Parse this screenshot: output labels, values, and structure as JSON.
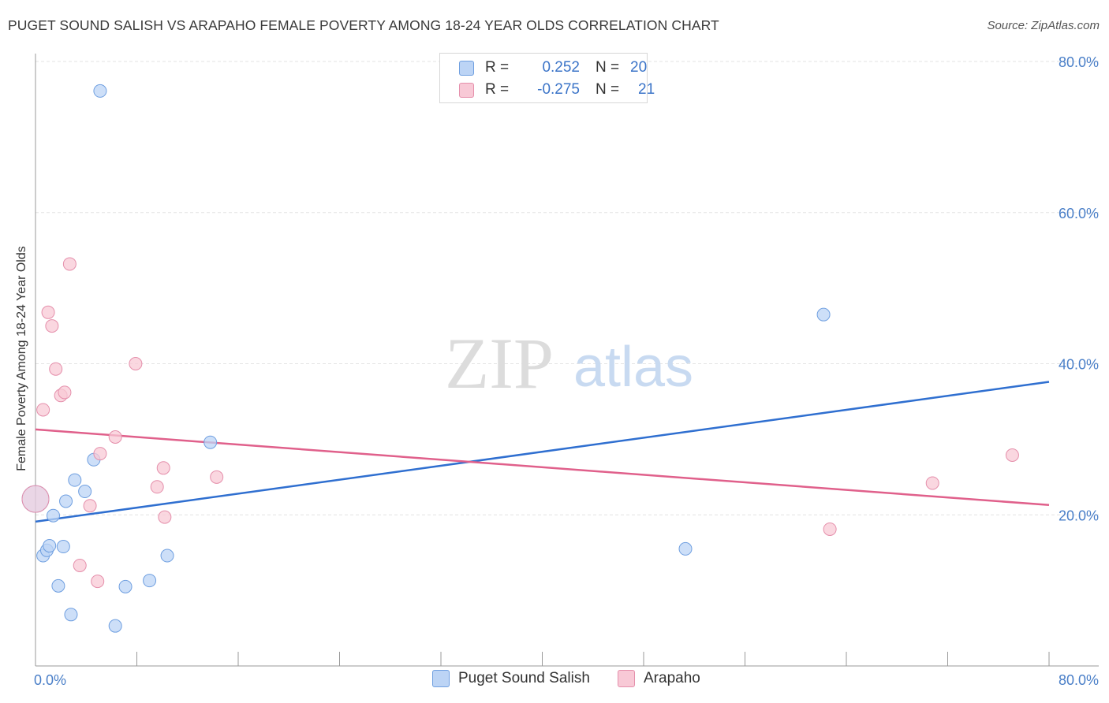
{
  "title": "PUGET SOUND SALISH VS ARAPAHO FEMALE POVERTY AMONG 18-24 YEAR OLDS CORRELATION CHART",
  "source": "Source: ZipAtlas.com",
  "watermark": {
    "zip": "ZIP",
    "atlas": "atlas"
  },
  "colors": {
    "blue_fill": "#bcd4f5",
    "blue_stroke": "#6f9fe0",
    "blue_line": "#2f6fd0",
    "pink_fill": "#f8c9d6",
    "pink_stroke": "#e58fab",
    "pink_line": "#e0608b",
    "tick_text": "#4a7fc8",
    "grid": "#e3e3e3"
  },
  "legend": {
    "rows": [
      {
        "r_label": "R =",
        "r_value": "0.252",
        "n_label": "N =",
        "n_value": "20",
        "series": "blue"
      },
      {
        "r_label": "R =",
        "r_value": "-0.275",
        "n_label": "N =",
        "n_value": "21",
        "series": "pink"
      }
    ]
  },
  "chart_data": {
    "type": "scatter",
    "title": "PUGET SOUND SALISH VS ARAPAHO FEMALE POVERTY AMONG 18-24 YEAR OLDS CORRELATION CHART",
    "xlabel": "",
    "ylabel": "Female Poverty Among 18-24 Year Olds",
    "xlim": [
      0,
      80
    ],
    "ylim": [
      0,
      80
    ],
    "x_tick_labels": [
      "0.0%",
      "80.0%"
    ],
    "y_ticks": [
      20,
      40,
      60,
      80
    ],
    "y_tick_labels": [
      "20.0%",
      "40.0%",
      "60.0%",
      "80.0%"
    ],
    "grid": true,
    "legend_position": "top-center",
    "series": [
      {
        "name": "Puget Sound Salish",
        "color": "blue",
        "r": 0.252,
        "n": 20,
        "points": [
          {
            "x": 5.1,
            "y": 76.1
          },
          {
            "x": 0.0,
            "y": 22.1,
            "large": true
          },
          {
            "x": 0.6,
            "y": 14.6
          },
          {
            "x": 0.9,
            "y": 15.3
          },
          {
            "x": 1.1,
            "y": 15.9
          },
          {
            "x": 1.4,
            "y": 19.9
          },
          {
            "x": 1.8,
            "y": 10.6
          },
          {
            "x": 2.2,
            "y": 15.8
          },
          {
            "x": 2.4,
            "y": 21.8
          },
          {
            "x": 2.8,
            "y": 6.8
          },
          {
            "x": 3.1,
            "y": 24.6
          },
          {
            "x": 3.9,
            "y": 23.1
          },
          {
            "x": 4.6,
            "y": 27.3
          },
          {
            "x": 6.3,
            "y": 5.3
          },
          {
            "x": 7.1,
            "y": 10.5
          },
          {
            "x": 9.0,
            "y": 11.3
          },
          {
            "x": 10.4,
            "y": 14.6
          },
          {
            "x": 13.8,
            "y": 29.6
          },
          {
            "x": 51.3,
            "y": 15.5
          },
          {
            "x": 62.2,
            "y": 46.5
          }
        ],
        "trend": {
          "x": [
            0,
            80
          ],
          "y": [
            19.1,
            37.6
          ]
        }
      },
      {
        "name": "Arapaho",
        "color": "pink",
        "r": -0.275,
        "n": 21,
        "points": [
          {
            "x": 0.0,
            "y": 22.1,
            "large": true
          },
          {
            "x": 0.6,
            "y": 33.9
          },
          {
            "x": 1.0,
            "y": 46.8
          },
          {
            "x": 1.3,
            "y": 45.0
          },
          {
            "x": 1.6,
            "y": 39.3
          },
          {
            "x": 2.0,
            "y": 35.8
          },
          {
            "x": 2.3,
            "y": 36.2
          },
          {
            "x": 2.7,
            "y": 53.2
          },
          {
            "x": 3.5,
            "y": 13.3
          },
          {
            "x": 4.3,
            "y": 21.2
          },
          {
            "x": 4.9,
            "y": 11.2
          },
          {
            "x": 5.1,
            "y": 28.1
          },
          {
            "x": 6.3,
            "y": 30.3
          },
          {
            "x": 7.9,
            "y": 40.0
          },
          {
            "x": 9.6,
            "y": 23.7
          },
          {
            "x": 10.1,
            "y": 26.2
          },
          {
            "x": 10.2,
            "y": 19.7
          },
          {
            "x": 14.3,
            "y": 25.0
          },
          {
            "x": 62.7,
            "y": 18.1
          },
          {
            "x": 70.8,
            "y": 24.2
          },
          {
            "x": 77.1,
            "y": 27.9
          }
        ],
        "trend": {
          "x": [
            0,
            80
          ],
          "y": [
            31.3,
            21.3
          ]
        }
      }
    ]
  },
  "bottom_legend": [
    {
      "label": "Puget Sound Salish",
      "series": "blue"
    },
    {
      "label": "Arapaho",
      "series": "pink"
    }
  ]
}
